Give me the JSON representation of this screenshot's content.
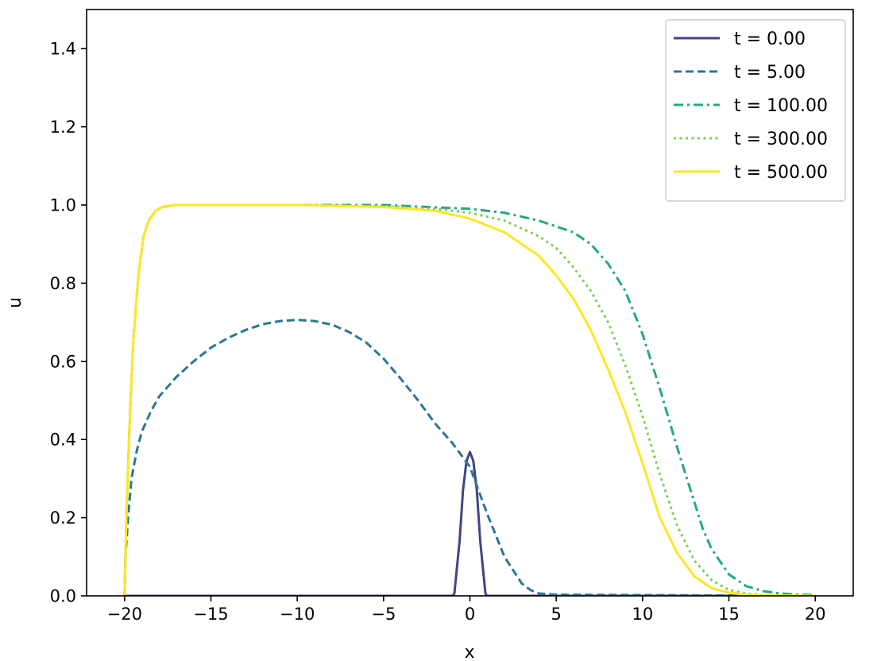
{
  "chart_data": {
    "type": "line",
    "title": "",
    "xlabel": "x",
    "ylabel": "u",
    "xlim": [
      -22.2,
      22.2
    ],
    "ylim": [
      0,
      1.5
    ],
    "xticks": [
      -20,
      -15,
      -10,
      -5,
      0,
      5,
      10,
      15,
      20
    ],
    "xtick_labels": [
      "−20",
      "−15",
      "−10",
      "−5",
      "0",
      "5",
      "10",
      "15",
      "20"
    ],
    "yticks": [
      0.0,
      0.2,
      0.4,
      0.6,
      0.8,
      1.0,
      1.2,
      1.4
    ],
    "ytick_labels": [
      "0.0",
      "0.2",
      "0.4",
      "0.6",
      "0.8",
      "1.0",
      "1.2",
      "1.4"
    ],
    "grid": false,
    "legend_position": "top-right",
    "series": [
      {
        "name": "t = 0.00",
        "color": "#414487",
        "dash": "solid",
        "x": [
          -20,
          -1.0,
          -0.9,
          -0.6,
          -0.4,
          -0.2,
          0,
          0.2,
          0.4,
          0.6,
          0.9,
          1.0,
          20
        ],
        "y": [
          0,
          0,
          0.005,
          0.14,
          0.27,
          0.345,
          0.368,
          0.345,
          0.27,
          0.14,
          0.005,
          0,
          0
        ]
      },
      {
        "name": "t = 5.00",
        "color": "#2a788e",
        "dash": "dashed",
        "x": [
          -20,
          -19.95,
          -19.8,
          -19.6,
          -19.3,
          -19,
          -18.5,
          -18,
          -17,
          -16,
          -15,
          -14,
          -13,
          -12,
          -11,
          -10,
          -9,
          -8,
          -7,
          -6,
          -5,
          -4,
          -3,
          -2,
          -1,
          0,
          1,
          2,
          3,
          3.5,
          4,
          5,
          10,
          15,
          20
        ],
        "y": [
          0,
          0.1,
          0.2,
          0.3,
          0.37,
          0.42,
          0.47,
          0.51,
          0.56,
          0.6,
          0.635,
          0.66,
          0.68,
          0.695,
          0.703,
          0.706,
          0.703,
          0.694,
          0.675,
          0.648,
          0.607,
          0.555,
          0.5,
          0.44,
          0.39,
          0.33,
          0.21,
          0.1,
          0.032,
          0.015,
          0.006,
          0.003,
          0.002,
          0.001,
          0.0
        ]
      },
      {
        "name": "t = 100.00",
        "color": "#22a884",
        "dash": "dashdot",
        "x": [
          -20,
          -19.9,
          -19.7,
          -19.5,
          -19.2,
          -18.9,
          -18.6,
          -18.2,
          -17.8,
          -17,
          -10,
          -5,
          0,
          2,
          4,
          6,
          7,
          8,
          9,
          10,
          11,
          12,
          13,
          13.5,
          14,
          15,
          16,
          17,
          18,
          19,
          20
        ],
        "y": [
          0,
          0.2,
          0.45,
          0.65,
          0.82,
          0.92,
          0.96,
          0.985,
          0.995,
          1.0,
          1.0,
          1.0,
          0.99,
          0.98,
          0.96,
          0.93,
          0.9,
          0.85,
          0.78,
          0.67,
          0.53,
          0.38,
          0.24,
          0.17,
          0.12,
          0.055,
          0.025,
          0.012,
          0.006,
          0.003,
          0.002
        ]
      },
      {
        "name": "t = 300.00",
        "color": "#7ad151",
        "dash": "dotted",
        "x": [
          -20,
          -19.9,
          -19.7,
          -19.5,
          -19.2,
          -18.9,
          -18.6,
          -18.2,
          -17.8,
          -17,
          -10,
          -5,
          -2,
          0,
          2,
          4,
          5,
          6,
          7,
          8,
          9,
          10,
          11,
          12,
          13,
          14,
          15,
          16,
          17,
          20
        ],
        "y": [
          0,
          0.2,
          0.45,
          0.65,
          0.82,
          0.92,
          0.96,
          0.985,
          0.995,
          1.0,
          1.0,
          0.997,
          0.99,
          0.98,
          0.96,
          0.92,
          0.89,
          0.84,
          0.78,
          0.7,
          0.59,
          0.46,
          0.31,
          0.18,
          0.09,
          0.04,
          0.015,
          0.006,
          0.002,
          0.0
        ]
      },
      {
        "name": "t = 500.00",
        "color": "#fde725",
        "dash": "solid",
        "x": [
          -20,
          -19.9,
          -19.7,
          -19.5,
          -19.2,
          -18.9,
          -18.6,
          -18.2,
          -17.8,
          -17,
          -10,
          -5,
          -2,
          0,
          2,
          4,
          5,
          6,
          7,
          8,
          9,
          10,
          11,
          12,
          13,
          14,
          15,
          16,
          17,
          20
        ],
        "y": [
          0,
          0.2,
          0.45,
          0.65,
          0.82,
          0.92,
          0.96,
          0.985,
          0.995,
          1.0,
          1.0,
          0.995,
          0.985,
          0.965,
          0.93,
          0.87,
          0.82,
          0.76,
          0.68,
          0.58,
          0.47,
          0.34,
          0.2,
          0.11,
          0.05,
          0.02,
          0.008,
          0.003,
          0.001,
          0.0
        ]
      }
    ]
  }
}
